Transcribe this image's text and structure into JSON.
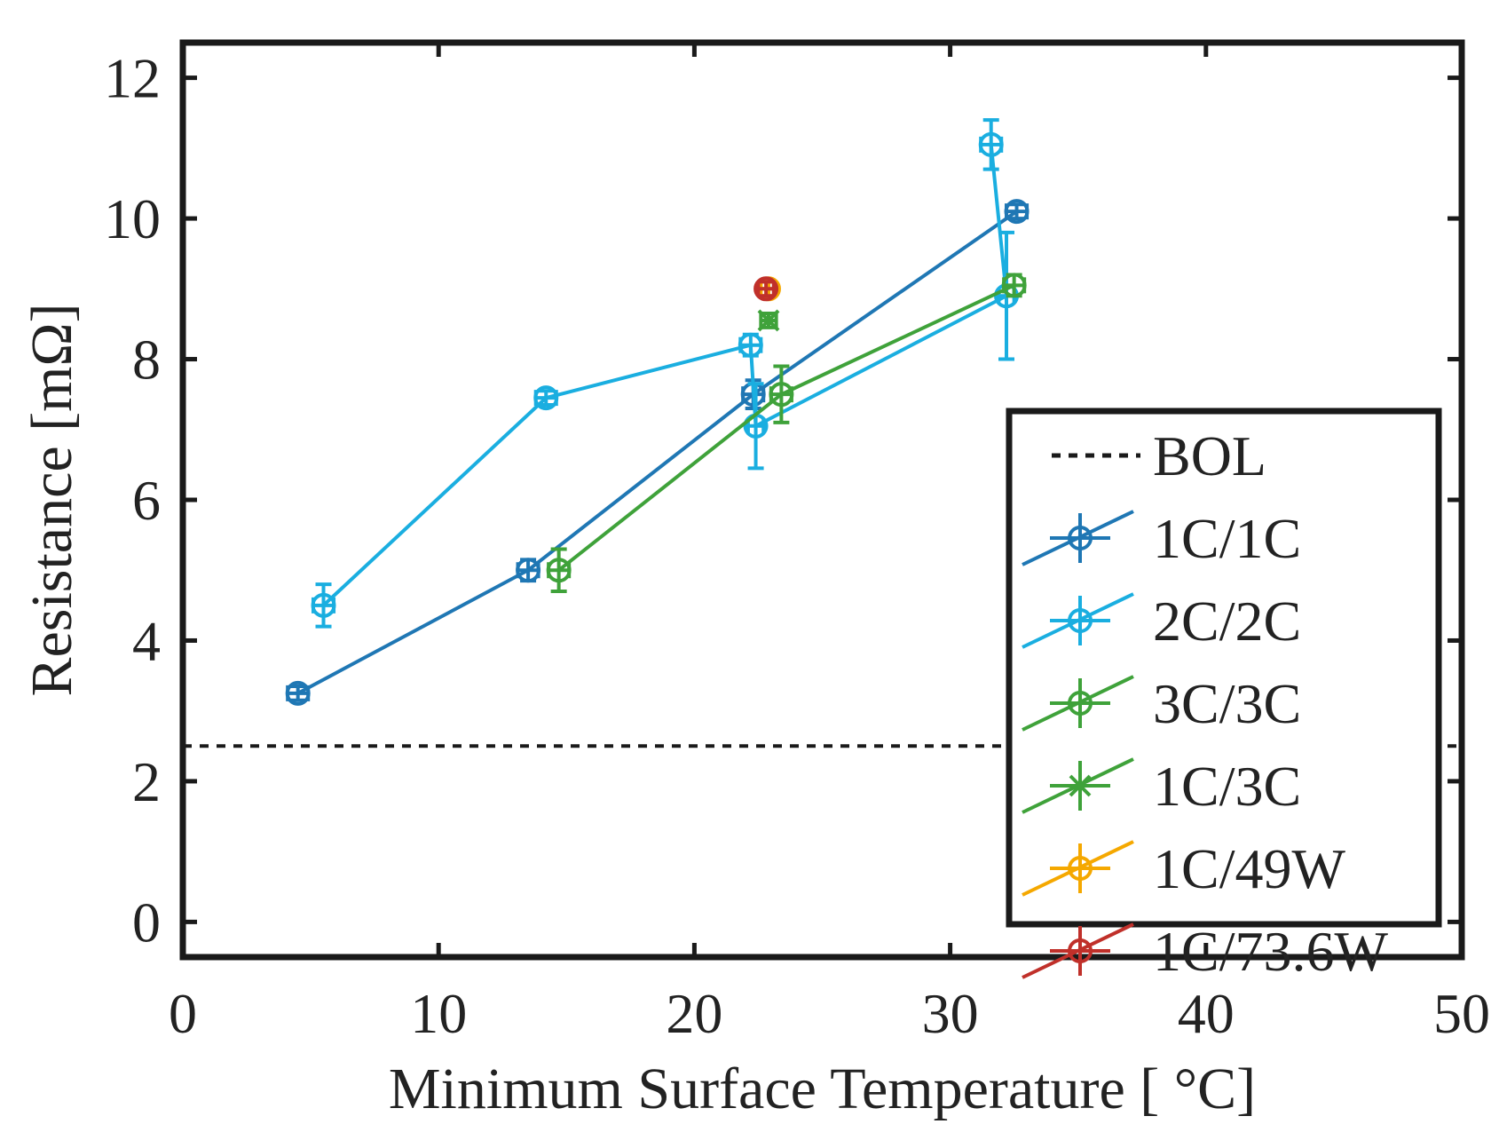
{
  "chart_data": {
    "type": "scatter",
    "title": "",
    "xlabel": "Minimum Surface Temperature [ °C]",
    "ylabel": "Resistance [mΩ]",
    "xlim": [
      0,
      50
    ],
    "ylim": [
      -0.5,
      12.5
    ],
    "xticks": [
      0,
      10,
      20,
      30,
      40,
      50
    ],
    "yticks": [
      0,
      2,
      4,
      6,
      8,
      10,
      12
    ],
    "xtick_labels": [
      "0",
      "10",
      "20",
      "30",
      "40",
      "50"
    ],
    "ytick_labels": [
      "0",
      "2",
      "4",
      "6",
      "8",
      "10",
      "12"
    ],
    "grid": false,
    "legend_position": "bottom-right",
    "reference_line": {
      "name": "BOL",
      "y": 2.5,
      "style": "dotted",
      "color": "#1a1a1a"
    },
    "series": [
      {
        "name": "1C/1C",
        "color": "#1f77b4",
        "marker": "circle",
        "points": [
          {
            "x": 4.5,
            "y": 3.25,
            "xerr": 0.4,
            "yerr": 0.1
          },
          {
            "x": 13.5,
            "y": 5.0,
            "xerr": 0.4,
            "yerr": 0.15
          },
          {
            "x": 22.3,
            "y": 7.5,
            "xerr": 0.4,
            "yerr": 0.2
          },
          {
            "x": 32.6,
            "y": 10.1,
            "xerr": 0.4,
            "yerr": 0.1
          }
        ]
      },
      {
        "name": "2C/2C",
        "color": "#1aaee0",
        "marker": "circle",
        "points": [
          {
            "x": 5.5,
            "y": 4.5,
            "xerr": 0.4,
            "yerr": 0.3
          },
          {
            "x": 14.2,
            "y": 7.45,
            "xerr": 0.4,
            "yerr": 0.1
          },
          {
            "x": 22.2,
            "y": 8.2,
            "xerr": 0.4,
            "yerr": 0.15
          },
          {
            "x": 22.4,
            "y": 7.05,
            "xerr": 0.3,
            "yerr": 0.6
          },
          {
            "x": 32.2,
            "y": 8.9,
            "xerr": 0.3,
            "yerr": 0.9
          },
          {
            "x": 31.6,
            "y": 11.05,
            "xerr": 0.4,
            "yerr": 0.35
          }
        ]
      },
      {
        "name": "3C/3C",
        "color": "#3fa23a",
        "marker": "circle",
        "points": [
          {
            "x": 14.7,
            "y": 5.0,
            "xerr": 0.4,
            "yerr": 0.3
          },
          {
            "x": 23.4,
            "y": 7.5,
            "xerr": 0.4,
            "yerr": 0.4
          },
          {
            "x": 32.5,
            "y": 9.05,
            "xerr": 0.4,
            "yerr": 0.15
          }
        ]
      },
      {
        "name": "1C/3C",
        "color": "#3fa23a",
        "marker": "x",
        "points": [
          {
            "x": 22.9,
            "y": 8.55,
            "xerr": 0.3,
            "yerr": 0.1
          }
        ]
      },
      {
        "name": "1C/49W",
        "color": "#f5a800",
        "marker": "circle",
        "points": [
          {
            "x": 22.9,
            "y": 9.0,
            "xerr": 0.3,
            "yerr": 0.1
          }
        ]
      },
      {
        "name": "1C/73.6W",
        "color": "#c0302a",
        "marker": "circle",
        "points": [
          {
            "x": 22.8,
            "y": 9.0,
            "xerr": 0.3,
            "yerr": 0.1
          }
        ]
      }
    ]
  }
}
